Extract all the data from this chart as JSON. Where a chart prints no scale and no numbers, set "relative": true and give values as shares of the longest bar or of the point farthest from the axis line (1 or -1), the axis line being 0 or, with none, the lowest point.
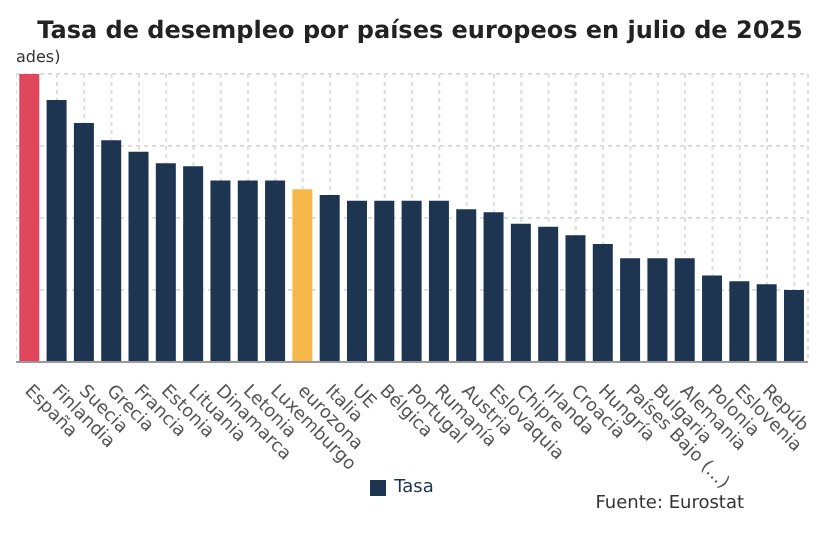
{
  "chart_data": {
    "type": "bar",
    "title": "Tasa de desempleo por países europeos en julio de 2025",
    "ylabel": "ades)",
    "relative": true,
    "categories": [
      "España",
      "Finlandia",
      "Suecia",
      "Grecia",
      "Francia",
      "Estonia",
      "Lituania",
      "Dinamarca",
      "Letonia",
      "Luxemburgo",
      "eurozona",
      "Italia",
      "UE",
      "Bélgica",
      "Portugal",
      "Rumanía",
      "Austria",
      "Eslovaquia",
      "Chipre",
      "Irlanda",
      "Croacia",
      "Hungría",
      "Países Bajo (...)",
      "Bulgaria",
      "Alemania",
      "Polonia",
      "Eslovenia",
      "Repúb",
      null
    ],
    "series": [
      {
        "name": "Tasa",
        "color": "#1d3550",
        "colors": [
          "#e0475b",
          "#1d3550",
          "#1d3550",
          "#1d3550",
          "#1d3550",
          "#1d3550",
          "#1d3550",
          "#1d3550",
          "#1d3550",
          "#1d3550",
          "#f7b84b",
          "#1d3550",
          "#1d3550",
          "#1d3550",
          "#1d3550",
          "#1d3550",
          "#1d3550",
          "#1d3550",
          "#1d3550",
          "#1d3550",
          "#1d3550",
          "#1d3550",
          "#1d3550",
          "#1d3550",
          "#1d3550",
          "#1d3550",
          "#1d3550",
          "#1d3550",
          "#1d3550"
        ],
        "values": [
          1,
          0.91,
          0.83,
          0.77,
          0.73,
          0.69,
          0.68,
          0.63,
          0.63,
          0.63,
          0.6,
          0.58,
          0.56,
          0.56,
          0.56,
          0.56,
          0.53,
          0.52,
          0.48,
          0.47,
          0.44,
          0.41,
          0.36,
          0.36,
          0.36,
          0.3,
          0.28,
          0.27,
          0.25
        ]
      }
    ],
    "grid": true,
    "legend": "bottom",
    "annotations": [
      "Fuente: Eurostat"
    ]
  }
}
